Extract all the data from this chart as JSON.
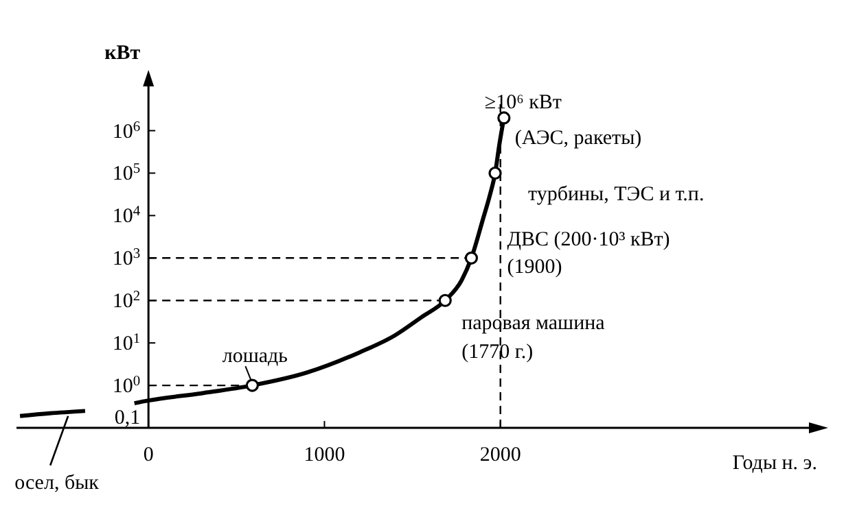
{
  "chart_data": {
    "type": "line",
    "xlabel": "Годы н. э.",
    "ylabel": "кВт",
    "log": "y",
    "xlim": [
      -750,
      3800
    ],
    "xticks": [
      0,
      1000,
      2000
    ],
    "ylim": [
      0.1,
      20000000
    ],
    "yticks": [
      {
        "value": 0.1,
        "label": "0,1"
      },
      {
        "value": 1,
        "label": "10$^{0}$"
      },
      {
        "value": 10,
        "label": "10$^{1}$"
      },
      {
        "value": 100,
        "label": "10$^{2}$"
      },
      {
        "value": 1000,
        "label": "10$^{3}$"
      },
      {
        "value": 10000,
        "label": "10$^{4}$"
      },
      {
        "value": 100000,
        "label": "10$^{5}$"
      },
      {
        "value": 1000000,
        "label": "10$^{6}$"
      }
    ],
    "series": [
      {
        "color": "#000000",
        "marker": "none",
        "x": [
          -730,
          -560,
          -360,
          null,
          -80,
          0,
          300,
          590,
          900,
          1200,
          1400,
          1550,
          1686,
          1780,
          1835,
          1900,
          1940,
          1970,
          1995,
          2020
        ],
        "values": [
          0.19,
          0.22,
          0.25,
          null,
          0.38,
          0.44,
          0.65,
          1,
          2,
          6,
          15,
          40,
          100,
          300,
          1000,
          8000,
          30000,
          100000,
          500000,
          2000000
        ]
      },
      {
        "type": "scatter",
        "color": "#000000",
        "marker": "circle",
        "x": [
          590,
          1686,
          1835,
          1970,
          2020
        ],
        "values": [
          1,
          100,
          1000,
          100000,
          2000000
        ]
      }
    ],
    "ref_lines": [
      {
        "axis": "y",
        "value": 1,
        "line_style": "dashed"
      },
      {
        "axis": "y",
        "value": 100,
        "line_style": "dashed"
      },
      {
        "axis": "y",
        "value": 1000,
        "line_style": "dashed"
      },
      {
        "axis": "x",
        "value": 2000,
        "line_style": "dashed"
      }
    ],
    "annotations": [
      {
        "text": "≥10⁶ кВт",
        "x": 2020,
        "y": 2000000
      },
      {
        "text": "(АЭС,   ракеты)",
        "x": 2020,
        "y": 2000000
      },
      {
        "text": "турбины,   ТЭС и т.п.",
        "x": 1970,
        "y": 100000
      },
      {
        "text": "ДВС (200·10³ кВт)",
        "x": 1835,
        "y": 1000
      },
      {
        "text": "(1900)",
        "x": 1835,
        "y": 1000
      },
      {
        "text": "паровая машина",
        "x": 1686,
        "y": 100
      },
      {
        "text": "(1770 г.)",
        "x": 1686,
        "y": 100
      },
      {
        "text": "лошадь",
        "x": 590,
        "y": 1
      },
      {
        "text": "осел, бык",
        "x": -480,
        "y": 0.22
      }
    ]
  }
}
